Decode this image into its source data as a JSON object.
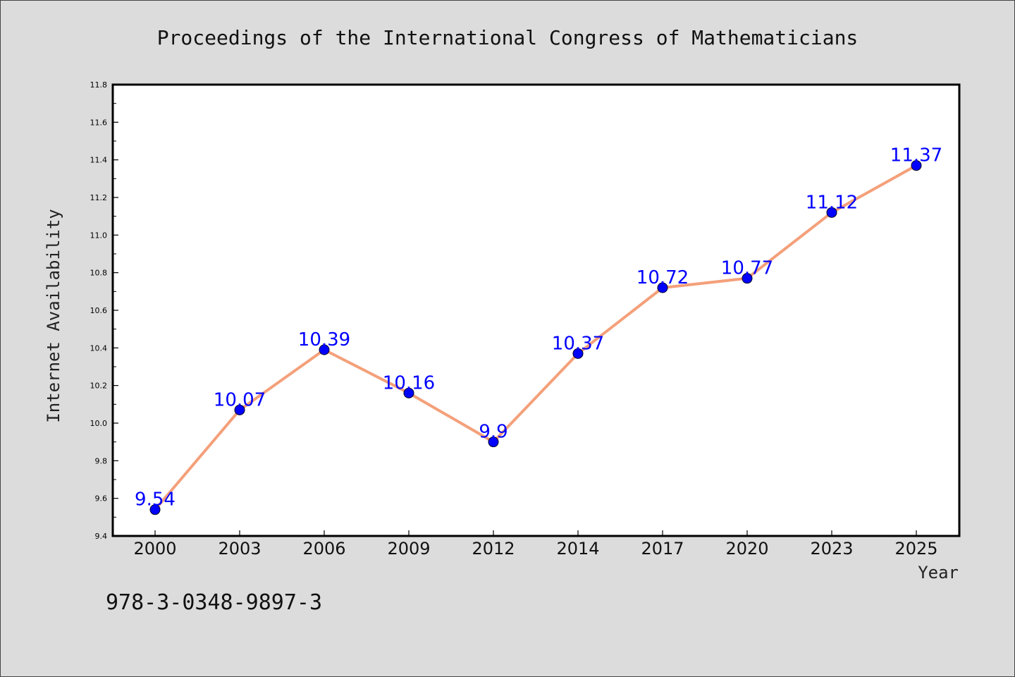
{
  "chart_data": {
    "type": "line",
    "title": "Proceedings of the International Congress of Mathematicians",
    "xlabel": "Year",
    "ylabel": "Internet Availability",
    "categories": [
      "2000",
      "2003",
      "2006",
      "2009",
      "2012",
      "2014",
      "2017",
      "2020",
      "2023",
      "2025"
    ],
    "series": [
      {
        "values": [
          9.54,
          10.07,
          10.39,
          10.16,
          9.9,
          10.37,
          10.72,
          10.77,
          11.12,
          11.37
        ],
        "data_labels": [
          "9.54",
          "10.07",
          "10.39",
          "10.16",
          "9.9",
          "10.37",
          "10.72",
          "10.77",
          "11.12",
          "11.37"
        ],
        "line_color": "#f4a07a",
        "marker_color": "#0000ff"
      }
    ],
    "ylim": [
      9.4,
      11.8
    ],
    "yticks": [
      "9.4",
      "9.6",
      "9.8",
      "10.0",
      "10.2",
      "10.4",
      "10.6",
      "10.8",
      "11.0",
      "11.2",
      "11.4",
      "11.6",
      "11.8"
    ],
    "grid": false,
    "legend": "none"
  },
  "footer": {
    "isbn": "978-3-0348-9897-3"
  },
  "colors": {
    "background": "#dcdcdc",
    "plot_background": "#ffffff",
    "label_color": "#0000ff"
  }
}
